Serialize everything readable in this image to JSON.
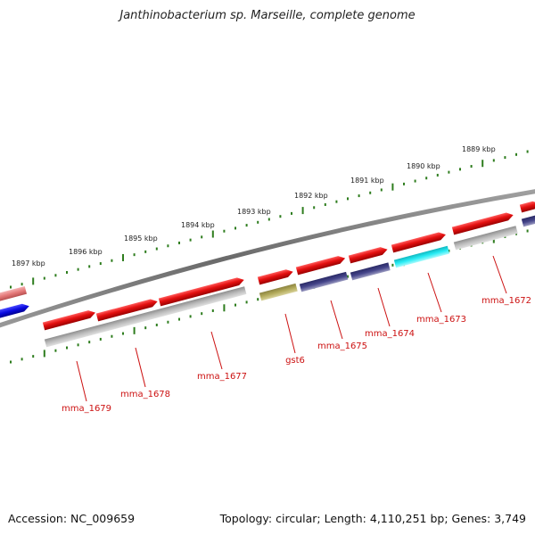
{
  "title": "Janthinobacterium sp. Marseille, complete genome",
  "footer": {
    "accession": "Accession: NC_009659",
    "summary": "Topology: circular; Length: 4,110,251 bp; Genes: 3,749"
  },
  "colors": {
    "backbone": "#7a7a7a",
    "tick": "#2e7d1e",
    "gene_red": "#e01010",
    "gene_pink": "#e88080",
    "gene_blue": "#0a0ae0",
    "gene_gray": "#b0b0b0",
    "gene_navy": "#404080",
    "gene_olive": "#b0a858",
    "gene_cyan": "#20e8f0",
    "label": "#cc1111"
  },
  "scale_labels": [
    "1897 kbp",
    "1896 kbp",
    "1895 kbp",
    "1894 kbp",
    "1893 kbp",
    "1892 kbp",
    "1891 kbp",
    "1890 kbp",
    "1889 kbp"
  ],
  "gene_labels": [
    "mma_1679",
    "mma_1678",
    "mma_1677",
    "gst6",
    "mma_1675",
    "mma_1674",
    "mma_1673",
    "mma_1672"
  ]
}
